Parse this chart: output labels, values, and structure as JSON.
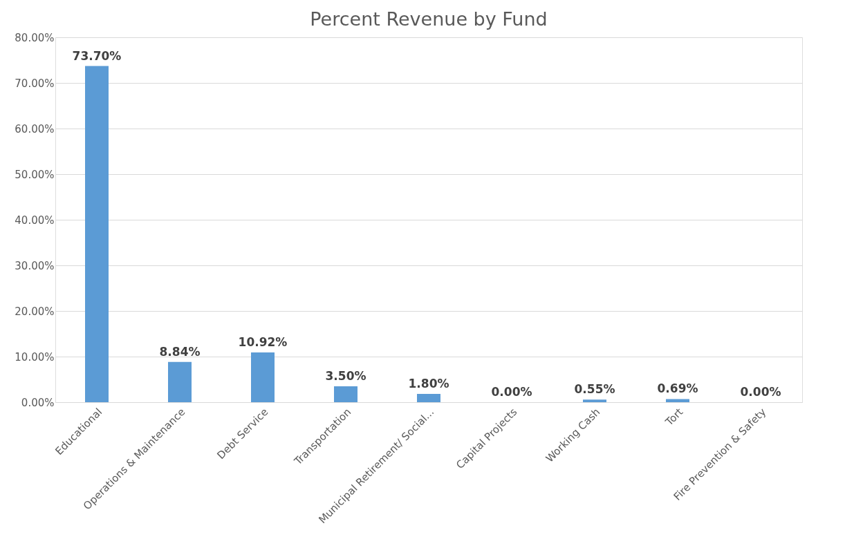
{
  "chart_data": {
    "type": "bar",
    "title": "Percent Revenue by Fund",
    "categories": [
      "Educational",
      "Operations & Maintenance",
      "Debt Service",
      "Transportation",
      "Municipal Retirement/ Social...",
      "Capital Projects",
      "Working Cash",
      "Tort",
      "Fire Prevention & Safety"
    ],
    "values": [
      73.7,
      8.84,
      10.92,
      3.5,
      1.8,
      0.0,
      0.55,
      0.69,
      0.0
    ],
    "value_labels": [
      "73.70%",
      "8.84%",
      "10.92%",
      "3.50%",
      "1.80%",
      "0.00%",
      "0.55%",
      "0.69%",
      "0.00%"
    ],
    "color": "#5b9bd5",
    "ylim": [
      0,
      80
    ],
    "yticks": [
      {
        "value": 0,
        "label": "0.00%"
      },
      {
        "value": 10,
        "label": "10.00%"
      },
      {
        "value": 20,
        "label": "20.00%"
      },
      {
        "value": 30,
        "label": "30.00%"
      },
      {
        "value": 40,
        "label": "40.00%"
      },
      {
        "value": 50,
        "label": "50.00%"
      },
      {
        "value": 60,
        "label": "60.00%"
      },
      {
        "value": 70,
        "label": "70.00%"
      },
      {
        "value": 80,
        "label": "80.00%"
      }
    ],
    "grid": "y"
  }
}
